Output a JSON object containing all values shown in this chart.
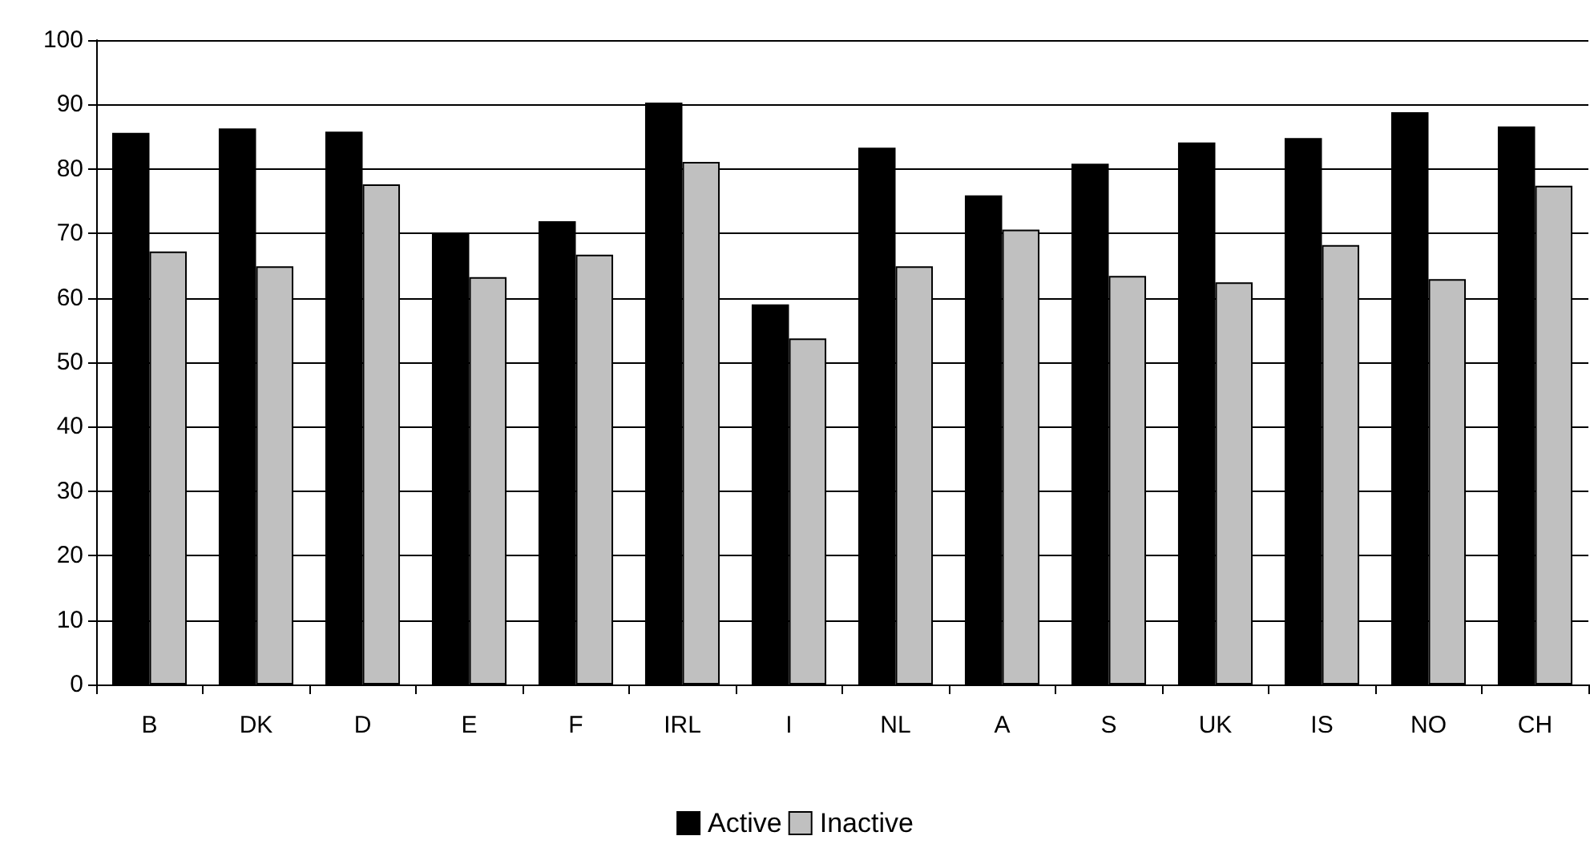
{
  "chart_data": {
    "type": "bar",
    "categories": [
      "B",
      "DK",
      "D",
      "E",
      "F",
      "IRL",
      "I",
      "NL",
      "A",
      "S",
      "UK",
      "IS",
      "NO",
      "CH"
    ],
    "series": [
      {
        "name": "Active",
        "color": "#000000",
        "values": [
          85.6,
          86.3,
          85.8,
          69.9,
          71.9,
          90.3,
          59.0,
          83.3,
          75.9,
          80.8,
          84.1,
          84.8,
          88.8,
          86.6
        ]
      },
      {
        "name": "Inactive",
        "color": "#c0c0c0",
        "values": [
          67.2,
          64.9,
          77.6,
          63.2,
          66.7,
          81.1,
          53.7,
          64.9,
          70.6,
          63.4,
          62.4,
          68.2,
          62.9,
          77.4
        ]
      }
    ],
    "ylim": [
      0,
      100
    ],
    "yticks": [
      0,
      10,
      20,
      30,
      40,
      50,
      60,
      70,
      80,
      90,
      100
    ],
    "grid": "y",
    "legend": "bottom"
  }
}
